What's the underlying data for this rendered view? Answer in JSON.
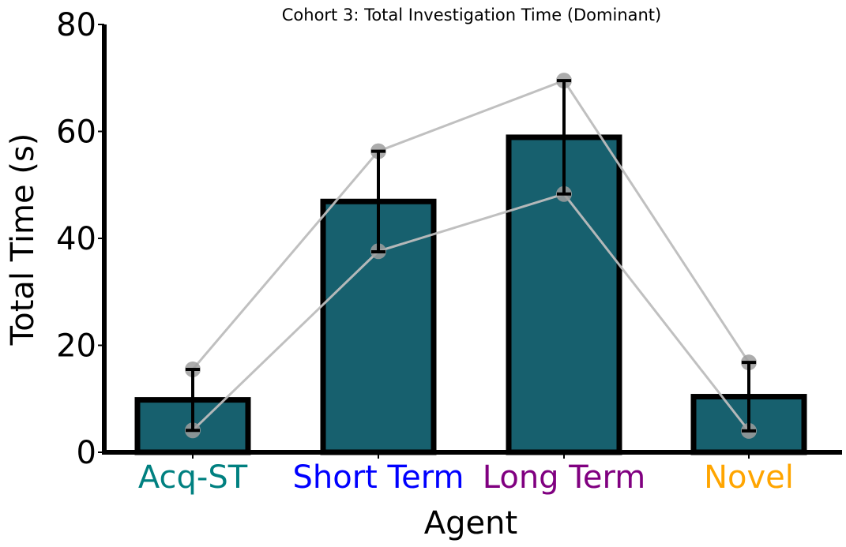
{
  "chart_data": {
    "type": "bar",
    "title": "Cohort 3: Total Investigation Time (Dominant)",
    "xlabel": "Agent",
    "ylabel": "Total Time (s)",
    "ylim": [
      0,
      80
    ],
    "yticks": [
      0,
      20,
      40,
      60,
      80
    ],
    "grid": false,
    "categories": [
      "Acq-ST",
      "Short Term",
      "Long Term",
      "Novel"
    ],
    "category_colors": [
      "#008080",
      "#0000ff",
      "#800080",
      "#ffa500"
    ],
    "bar_color": "#17606e",
    "values": [
      9.8,
      46.9,
      58.9,
      10.4
    ],
    "error": [
      5.7,
      9.4,
      10.6,
      6.4
    ],
    "subject_series": [
      {
        "values": [
          15.5,
          56.3,
          69.5,
          16.8
        ]
      },
      {
        "values": [
          4.1,
          37.6,
          48.3,
          4.0
        ]
      }
    ],
    "subject_line_color": "#bdbdbd",
    "subject_marker_color": "#9e9e9e"
  }
}
